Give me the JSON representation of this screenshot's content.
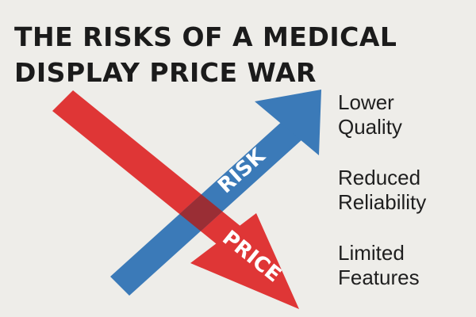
{
  "title_lines": [
    "THE RISKS OF A MEDICAL",
    "DISPLAY PRICE WAR"
  ],
  "arrows": {
    "risk": {
      "label": "RISK",
      "color": "#3b7ab8",
      "direction": "up"
    },
    "price": {
      "label": "PRICE",
      "color": "#df3636",
      "direction": "down"
    },
    "overlap_color": "#9a2e35"
  },
  "risks": [
    {
      "lines": [
        "Lower",
        "Quality"
      ]
    },
    {
      "lines": [
        "Reduced",
        "Reliability"
      ]
    },
    {
      "lines": [
        "Limited",
        "Features"
      ]
    }
  ]
}
